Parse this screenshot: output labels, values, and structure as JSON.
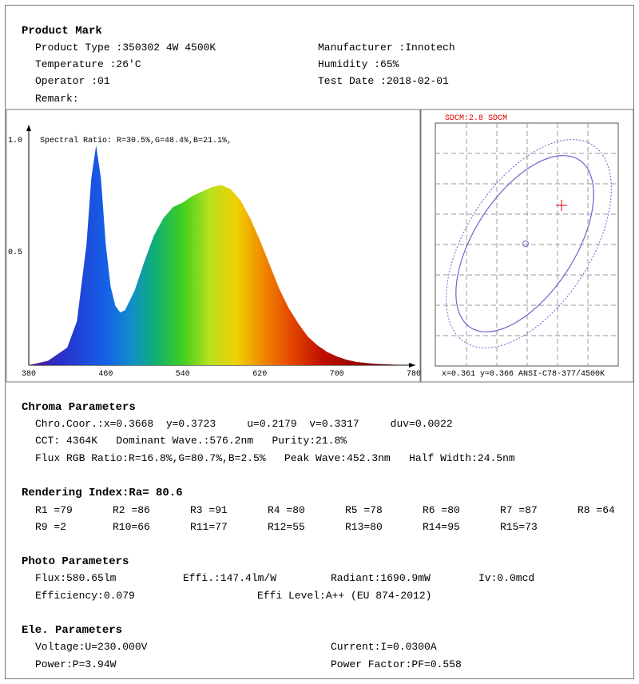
{
  "product": {
    "title": "Product Mark",
    "type": "Product Type :350302 4W 4500K",
    "manufacturer": "Manufacturer :Innotech",
    "temperature": "Temperature :26'C",
    "humidity": "Humidity :65%",
    "operator": "Operator :01",
    "test_date": "Test Date :2018-02-01",
    "remark": "Remark:"
  },
  "spectrum": {
    "y_top": "1.0",
    "y_mid": "0.5",
    "ratio": "Spectral Ratio:  R=30.5%,G=48.4%,B=21.1%,",
    "x_ticks": [
      "380",
      "460",
      "540",
      "620",
      "700",
      "780"
    ]
  },
  "chart_data": {
    "type": "area",
    "x": [
      380,
      400,
      420,
      430,
      440,
      445,
      450,
      455,
      460,
      465,
      470,
      475,
      480,
      490,
      500,
      510,
      520,
      530,
      540,
      550,
      560,
      570,
      580,
      590,
      600,
      610,
      620,
      630,
      640,
      650,
      660,
      670,
      680,
      690,
      700,
      710,
      720,
      740,
      760,
      780
    ],
    "y": [
      0.0,
      0.02,
      0.08,
      0.2,
      0.55,
      0.85,
      1.0,
      0.85,
      0.55,
      0.36,
      0.27,
      0.24,
      0.25,
      0.34,
      0.47,
      0.59,
      0.67,
      0.72,
      0.74,
      0.77,
      0.79,
      0.81,
      0.82,
      0.8,
      0.75,
      0.67,
      0.57,
      0.46,
      0.35,
      0.26,
      0.19,
      0.13,
      0.09,
      0.06,
      0.04,
      0.025,
      0.015,
      0.006,
      0.002,
      0.0
    ],
    "xlim": [
      380,
      780
    ],
    "ylim": [
      0,
      1.0
    ]
  },
  "chroma_diagram": {
    "title": "SDCM:2.8 SDCM",
    "caption": "x=0.361 y=0.366 ANSI-C78-377/4500K"
  },
  "chroma": {
    "title": "Chroma Parameters",
    "line1": "Chro.Coor.:x=0.3668  y=0.3723     u=0.2179  v=0.3317     duv=0.0022",
    "line2": "CCT: 4364K   Dominant Wave.:576.2nm   Purity:21.8%",
    "line3": "Flux RGB Ratio:R=16.8%,G=80.7%,B=2.5%   Peak Wave:452.3nm   Half Width:24.5nm"
  },
  "rendering": {
    "title": "Rendering Index:Ra= 80.6",
    "items": [
      "R1 =79",
      "R2 =86",
      "R3 =91",
      "R4 =80",
      "R5 =78",
      "R6 =80",
      "R7 =87",
      "R8 =64",
      "R9 =2",
      "R10=66",
      "R11=77",
      "R12=55",
      "R13=80",
      "R14=95",
      "R15=73"
    ]
  },
  "photo": {
    "title": "Photo Parameters",
    "flux": "Flux:580.65lm",
    "effi": "Effi.:147.4lm/W",
    "radiant": "Radiant:1690.9mW",
    "iv": "Iv:0.0mcd",
    "efficiency": "Efficiency:0.079",
    "effi_level": "Effi Level:A++ (EU 874-2012)"
  },
  "electric": {
    "title": "Ele. Parameters",
    "voltage": "Voltage:U=230.000V",
    "current": "Current:I=0.0300A",
    "power": "Power:P=3.94W",
    "pf": "Power Factor:PF=0.558"
  }
}
